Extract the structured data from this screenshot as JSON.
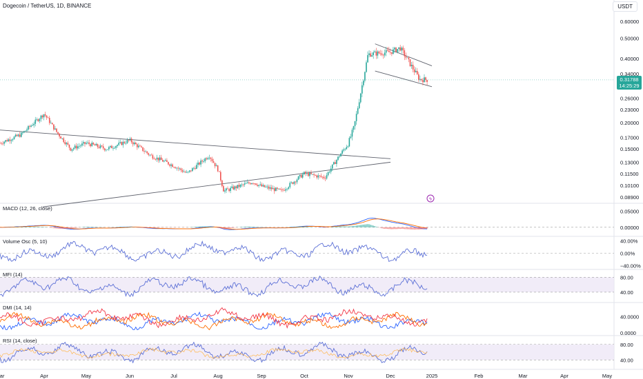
{
  "header": {
    "symbol_title": "Dogecoin / TetherUS, 1D, BINANCE",
    "currency_button": "USDT"
  },
  "price_tag": {
    "price": "0.31788",
    "countdown": "14:25:29"
  },
  "panes": {
    "macd": {
      "label": "MACD (12, 26, close)",
      "ticks": [
        "0.05000",
        "0.00000"
      ]
    },
    "volume_osc": {
      "label": "Volume Osc (5, 10)",
      "ticks": [
        "40.00%",
        "0.00%",
        "−40.00%"
      ]
    },
    "mfi": {
      "label": "MFI (14)",
      "ticks": [
        "80.00",
        "40.00"
      ]
    },
    "dmi": {
      "label": "DMI (14, 14)",
      "ticks": [
        "40.0000",
        "0.0000"
      ]
    },
    "rsi": {
      "label": "RSI (14, close)",
      "ticks": [
        "80.00",
        "40.00"
      ]
    }
  },
  "colors": {
    "up": "#26a69a",
    "down": "#ef5350",
    "macd_line": "#2962ff",
    "signal_line": "#ff6d00",
    "osc_line": "#5b6fd6",
    "band_fill": "#ede7f6",
    "dmi_plus": "#2962ff",
    "dmi_minus": "#ff6d00",
    "adx": "#f23645"
  },
  "chart_data": {
    "type": "candlestick",
    "x_ticks": [
      "Mar",
      "Apr",
      "May",
      "Jun",
      "Jul",
      "Aug",
      "Sep",
      "Oct",
      "Nov",
      "Dec",
      "2025",
      "Feb",
      "Mar",
      "Apr",
      "May"
    ],
    "y_ticks": [
      "0.60000",
      "0.50000",
      "0.40000",
      "0.34000",
      "0.26000",
      "0.23000",
      "0.20000",
      "0.17000",
      "0.15000",
      "0.13000",
      "0.11500",
      "0.10100",
      "0.08900"
    ],
    "y_scale": "log",
    "last_price": 0.31788,
    "price_path": [
      [
        "Mar",
        0.16
      ],
      [
        "Mar 15",
        0.175
      ],
      [
        "Apr",
        0.22
      ],
      [
        "Apr 10",
        0.18
      ],
      [
        "Apr 20",
        0.15
      ],
      [
        "May",
        0.16
      ],
      [
        "May 15",
        0.15
      ],
      [
        "Jun",
        0.165
      ],
      [
        "Jun 15",
        0.14
      ],
      [
        "Jul",
        0.125
      ],
      [
        "Jul 10",
        0.115
      ],
      [
        "Jul 25",
        0.14
      ],
      [
        "Aug",
        0.12
      ],
      [
        "Aug 5",
        0.095
      ],
      [
        "Aug 25",
        0.105
      ],
      [
        "Sep",
        0.1
      ],
      [
        "Sep 15",
        0.095
      ],
      [
        "Oct",
        0.115
      ],
      [
        "Oct 15",
        0.11
      ],
      [
        "Oct 25",
        0.14
      ],
      [
        "Nov",
        0.16
      ],
      [
        "Nov 5",
        0.19
      ],
      [
        "Nov 15",
        0.42
      ],
      [
        "Dec",
        0.43
      ],
      [
        "Dec 8",
        0.45
      ],
      [
        "Dec 15",
        0.38
      ],
      [
        "Dec 22",
        0.32
      ],
      [
        "Dec 28",
        0.31788
      ]
    ],
    "trendlines": [
      {
        "from": [
          "Feb 28",
          0.185
        ],
        "to": [
          "Dec 1",
          0.135
        ]
      },
      {
        "from": [
          "Mar 30",
          0.08
        ],
        "to": [
          "Dec 1",
          0.13
        ]
      },
      {
        "from": [
          "Nov 20",
          0.47
        ],
        "to": [
          "Jan 1",
          0.37
        ]
      },
      {
        "from": [
          "Nov 20",
          0.35
        ],
        "to": [
          "Jan 1",
          0.295
        ]
      }
    ]
  }
}
